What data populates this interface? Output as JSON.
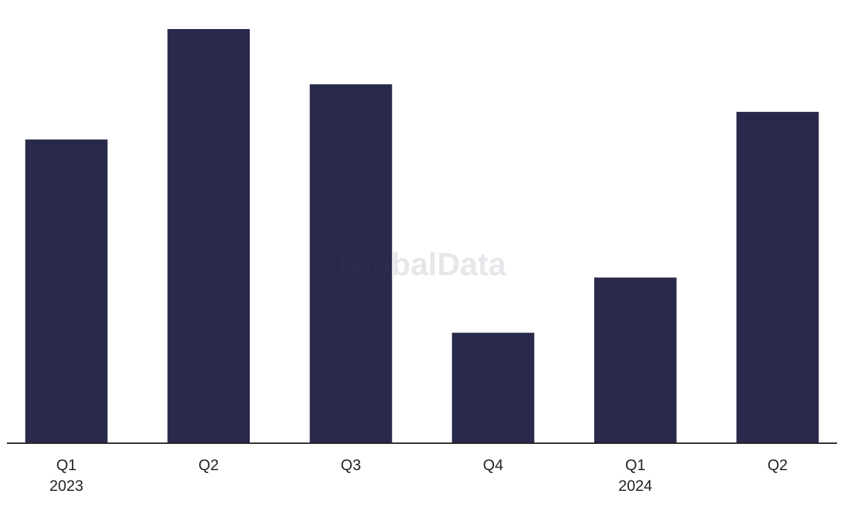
{
  "chart_data": {
    "type": "bar",
    "watermark": "GlobalData",
    "categories": [
      "Q1",
      "Q2",
      "Q3",
      "Q4",
      "Q1",
      "Q2"
    ],
    "x_sublabels": [
      "2023",
      null,
      null,
      null,
      "2024",
      null
    ],
    "values": [
      11,
      15,
      13,
      4,
      6,
      12
    ],
    "color": "#29294b",
    "ylim": [
      0,
      15
    ]
  }
}
